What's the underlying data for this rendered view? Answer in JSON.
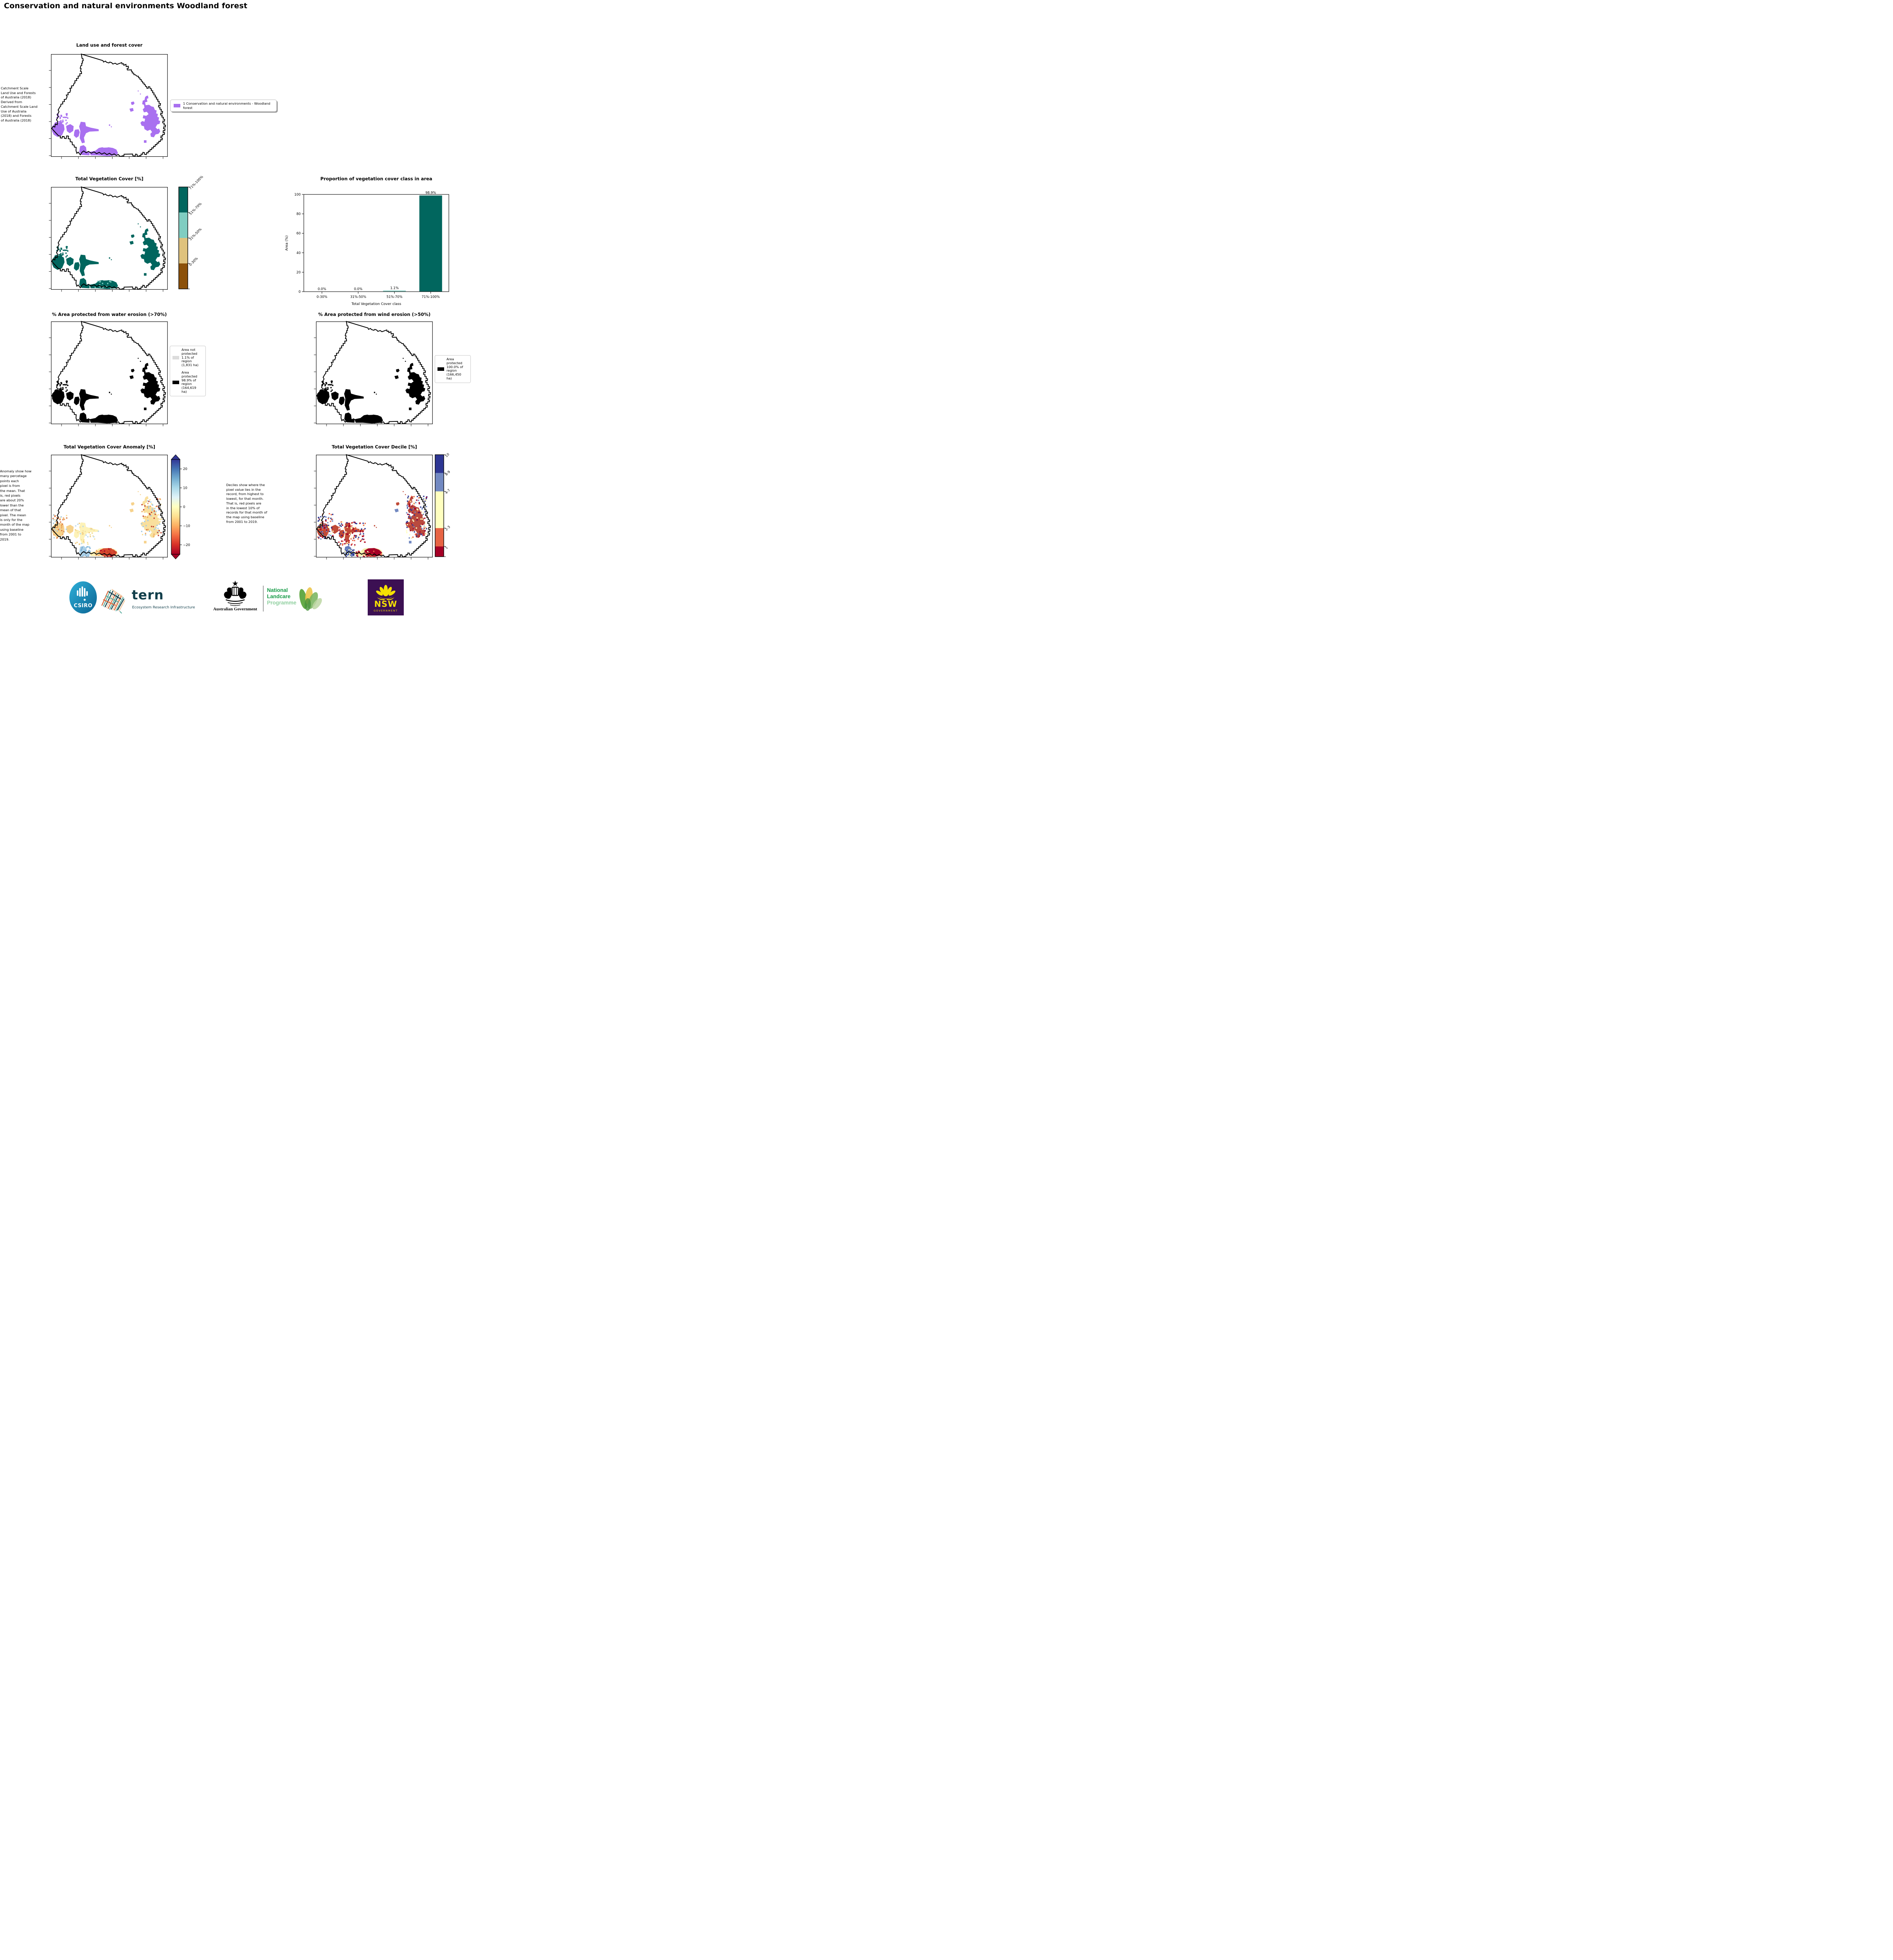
{
  "page": {
    "title": "Conservation and natural environments Woodland forest"
  },
  "panels": {
    "landuse": {
      "title": "Land use and forest cover",
      "side_text": " Catchment Scale\nLand Use and Forests\nof Australia (2018)\nDerived from\nCatchment Scale Land\nUse of Australia\n(2018) and Forests\nof Australia (2018)",
      "legend": {
        "label": "1 Conservation and natural environments - Woodland\nforest",
        "swatch_color": "#a970f0"
      }
    },
    "vegcover": {
      "title": "Total Vegetation Cover [%]",
      "colorbar": {
        "classes": [
          {
            "label": "71%-100%",
            "color": "#01665e"
          },
          {
            "label": "51%-70%",
            "color": "#80cdc1"
          },
          {
            "label": "31%-50%",
            "color": "#dfc27d"
          },
          {
            "label": "0-30%",
            "color": "#8c510a"
          }
        ]
      }
    },
    "water": {
      "title": "% Area protected from water erosion (>70%)",
      "legend": [
        {
          "color": "#dcdcdc",
          "label": "Area not\nprotected\n1.1% of\nregion\n(1,831 ha)"
        },
        {
          "color": "#000000",
          "label": "Area\nprotected\n98.9% of\nregion\n(164,619\nha)"
        }
      ]
    },
    "wind": {
      "title": "% Area protected from wind erosion (>50%)",
      "legend": [
        {
          "color": "#000000",
          "label": "Area\nprotected\n100.0% of\nregion\n(166,450\nha)"
        }
      ]
    },
    "anomaly": {
      "title": "Total Vegetation Cover Anomaly [%]",
      "side_text": "Anomaly show how\nmany percetage\npoints each\npixel is from\nthe mean. That\nis, red pixels\nare about 20%\nlower than the\nmean of that\npixel. The mean\nis only for the\nmonth of the map\nusing baseline\nfrom 2001 to\n2019.",
      "colorbar_ticks": [
        "20",
        "10",
        "0",
        "−10",
        "−20"
      ]
    },
    "decile": {
      "title": "Total Vegetation Cover Decile [%]",
      "side_text": "Deciles show where the\npixel value lies in the\nrecord, from highest to\nlowest, for that month.\nThat is, red pixels are\nin the lowest 10% of\nrecords for that month of\nthe map using baseline\nfrom 2001 to 2019.",
      "colorbar": {
        "classes": [
          {
            "label": "10",
            "color": "#2d3693"
          },
          {
            "label": "8-9",
            "color": "#7289c1"
          },
          {
            "label": "4-7",
            "color": "#ffffbf"
          },
          {
            "label": "2-3",
            "color": "#e76444"
          },
          {
            "label": "1",
            "color": "#a50026"
          }
        ]
      }
    }
  },
  "chart_data": {
    "type": "bar",
    "title": "Proportion of vegetation cover class in area",
    "categories": [
      "0-30%",
      "31%-50%",
      "51%-70%",
      "71%-100%"
    ],
    "values": [
      0.0,
      0.0,
      1.1,
      98.9
    ],
    "bar_labels": [
      "0.0%",
      "0.0%",
      "1.1%",
      "98.9%"
    ],
    "bar_colors": [
      "#01665e",
      "#01665e",
      "#80cdc1",
      "#01665e"
    ],
    "xlabel": "Total Vegetation Cover class",
    "ylabel": "Area (%)",
    "ylim": [
      0,
      100
    ],
    "yticks": [
      0,
      20,
      40,
      60,
      80,
      100
    ],
    "legend_position": "none",
    "grid": false
  },
  "footer": {
    "csiro_label": "CSIRO",
    "tern_label": "tern",
    "tern_sub": "Ecosystem Research Infrastructure",
    "ausgov_label": "Australian Government",
    "landcare_line1": "National",
    "landcare_line2": "Landcare",
    "landcare_line3": "Programme",
    "nsw_label": "NSW",
    "nsw_sub": "GOVERNMENT"
  }
}
